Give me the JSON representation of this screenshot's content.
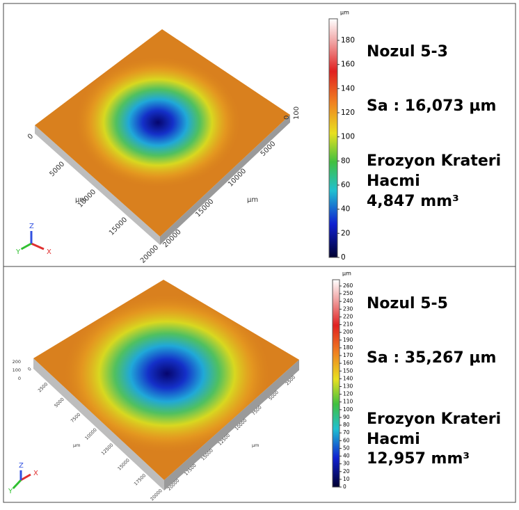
{
  "panels": [
    {
      "title": "Nozul 5-3",
      "sa": "Sa : 16,073 µm",
      "volume_label": [
        "Erozyon Krateri",
        "Hacmi"
      ],
      "volume": "4,847 mm³",
      "colorbar": {
        "unit": "µm",
        "ticks": [
          "0",
          "20",
          "40",
          "60",
          "80",
          "100",
          "120",
          "140",
          "160",
          "180"
        ]
      },
      "axis_left": [
        "0",
        "5000",
        "10000",
        "15000",
        "20000"
      ],
      "axis_left_unit": "µm",
      "axis_right": [
        "5000",
        "10000",
        "15000",
        "20000"
      ],
      "axis_right_unit": "µm",
      "axis_z": [
        "0",
        "100"
      ],
      "triad": [
        "X",
        "Y",
        "Z"
      ]
    },
    {
      "title": "Nozul 5-5",
      "sa": "Sa : 35,267 µm",
      "volume_label": [
        "Erozyon Krateri",
        "Hacmi"
      ],
      "volume": "12,957 mm³",
      "colorbar": {
        "unit": "µm",
        "ticks": [
          "0",
          "10",
          "20",
          "30",
          "40",
          "50",
          "60",
          "70",
          "80",
          "90",
          "100",
          "110",
          "120",
          "130",
          "140",
          "150",
          "160",
          "170",
          "180",
          "190",
          "200",
          "210",
          "220",
          "230",
          "240",
          "250",
          "260"
        ]
      },
      "axis_left": [
        "0",
        "2500",
        "5000",
        "7500",
        "10000",
        "12500",
        "15000",
        "17500",
        "20000"
      ],
      "axis_left_unit": "µm",
      "axis_right": [
        "2500",
        "5000",
        "7500",
        "10000",
        "12500",
        "15000",
        "17500",
        "20000"
      ],
      "axis_right_unit": "µm",
      "axis_z": [
        "0",
        "100",
        "200"
      ],
      "triad": [
        "X",
        "Y",
        "Z"
      ]
    }
  ]
}
